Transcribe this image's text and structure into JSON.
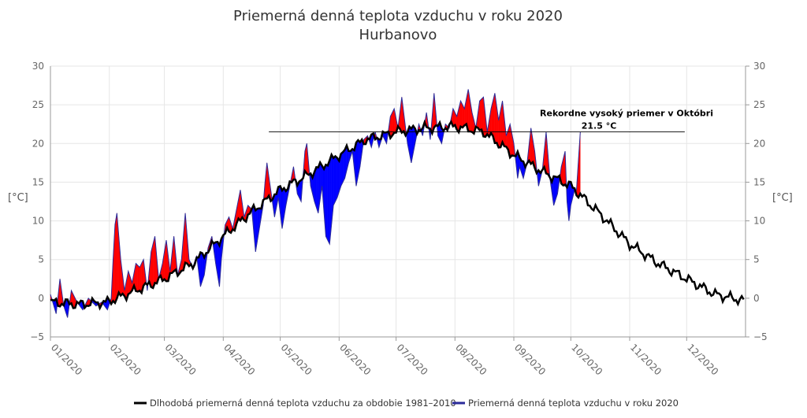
{
  "colors": {
    "above": "#ff0000",
    "below": "#0000ff",
    "series2020": "#2b2b9a",
    "normal": "#000000",
    "grid": "#e6e6e6",
    "axis": "#999999"
  },
  "chart_data": {
    "type": "area",
    "title": "Priemerná denná teplota vzduchu v roku 2020",
    "subtitle": "Hurbanovo",
    "ylabel_left": "[°C]",
    "ylabel_right": "[°C]",
    "ylim": [
      -5,
      30
    ],
    "yticks": [
      30,
      25,
      20,
      15,
      10,
      5,
      0,
      -5
    ],
    "ytick_labels": [
      "30",
      "25",
      "20",
      "15",
      "10",
      "5",
      "0",
      "−5"
    ],
    "xlim": [
      0,
      366
    ],
    "month_starts": [
      0,
      31,
      60,
      91,
      121,
      152,
      182,
      213,
      244,
      274,
      305,
      335
    ],
    "month_labels": [
      "01/2020",
      "02/2020",
      "03/2020",
      "04/2020",
      "05/2020",
      "06/2020",
      "07/2020",
      "08/2020",
      "09/2020",
      "10/2020",
      "11/2020",
      "12/2020"
    ],
    "legend": [
      "Dlhodobá priemerná denná teplota vzduchu za obdobie 1981–2010",
      "Priemerná denná teplota vzduchu v roku 2020"
    ],
    "annotation": {
      "label": "Rekordne vysoký priemer v Októbri",
      "value_label": "21.5 °C",
      "value": 21.5,
      "x_range": [
        115,
        334
      ]
    },
    "normal_keypoints": [
      [
        0,
        -0.5
      ],
      [
        15,
        -0.8
      ],
      [
        30,
        -0.5
      ],
      [
        45,
        1.0
      ],
      [
        60,
        2.5
      ],
      [
        75,
        4.5
      ],
      [
        91,
        8.0
      ],
      [
        105,
        11.0
      ],
      [
        121,
        14.0
      ],
      [
        136,
        16.0
      ],
      [
        152,
        18.5
      ],
      [
        166,
        20.5
      ],
      [
        182,
        21.5
      ],
      [
        197,
        22.0
      ],
      [
        213,
        22.2
      ],
      [
        228,
        21.5
      ],
      [
        244,
        18.5
      ],
      [
        258,
        16.5
      ],
      [
        274,
        14.5
      ],
      [
        289,
        11.0
      ],
      [
        305,
        7.0
      ],
      [
        320,
        4.5
      ],
      [
        335,
        2.5
      ],
      [
        350,
        0.5
      ],
      [
        365,
        -0.3
      ]
    ],
    "series_2020_keypoints": [
      [
        0,
        0.5
      ],
      [
        3,
        -2.0
      ],
      [
        5,
        2.5
      ],
      [
        7,
        -1.0
      ],
      [
        9,
        -2.5
      ],
      [
        11,
        1.0
      ],
      [
        14,
        -0.5
      ],
      [
        17,
        -1.5
      ],
      [
        20,
        0.0
      ],
      [
        24,
        -1.0
      ],
      [
        27,
        -0.5
      ],
      [
        30,
        -1.5
      ],
      [
        32,
        0.0
      ],
      [
        33,
        5.0
      ],
      [
        34,
        9.5
      ],
      [
        35,
        11.0
      ],
      [
        37,
        5.0
      ],
      [
        39,
        1.0
      ],
      [
        41,
        3.5
      ],
      [
        43,
        2.0
      ],
      [
        45,
        4.5
      ],
      [
        47,
        4.0
      ],
      [
        49,
        5.0
      ],
      [
        51,
        1.0
      ],
      [
        53,
        6.0
      ],
      [
        55,
        8.0
      ],
      [
        57,
        2.5
      ],
      [
        59,
        4.5
      ],
      [
        61,
        7.5
      ],
      [
        63,
        3.5
      ],
      [
        65,
        8.0
      ],
      [
        67,
        3.0
      ],
      [
        69,
        5.0
      ],
      [
        71,
        11.0
      ],
      [
        73,
        5.0
      ],
      [
        75,
        4.0
      ],
      [
        77,
        5.5
      ],
      [
        79,
        1.5
      ],
      [
        81,
        3.0
      ],
      [
        83,
        6.5
      ],
      [
        85,
        8.0
      ],
      [
        87,
        4.5
      ],
      [
        89,
        1.5
      ],
      [
        90,
        5.0
      ],
      [
        92,
        9.5
      ],
      [
        94,
        10.5
      ],
      [
        96,
        9.0
      ],
      [
        98,
        11.5
      ],
      [
        100,
        14.0
      ],
      [
        102,
        10.5
      ],
      [
        104,
        12.0
      ],
      [
        106,
        11.5
      ],
      [
        108,
        6.0
      ],
      [
        110,
        9.0
      ],
      [
        112,
        12.0
      ],
      [
        113,
        15.0
      ],
      [
        114,
        17.5
      ],
      [
        116,
        14.0
      ],
      [
        118,
        10.5
      ],
      [
        120,
        13.0
      ],
      [
        122,
        9.0
      ],
      [
        124,
        12.0
      ],
      [
        126,
        14.5
      ],
      [
        128,
        17.0
      ],
      [
        130,
        13.5
      ],
      [
        132,
        12.5
      ],
      [
        134,
        19.0
      ],
      [
        135,
        20.0
      ],
      [
        137,
        14.5
      ],
      [
        139,
        12.5
      ],
      [
        141,
        11.0
      ],
      [
        143,
        14.5
      ],
      [
        145,
        8.0
      ],
      [
        147,
        7.0
      ],
      [
        149,
        12.0
      ],
      [
        151,
        13.0
      ],
      [
        153,
        14.5
      ],
      [
        155,
        15.5
      ],
      [
        157,
        17.5
      ],
      [
        159,
        19.0
      ],
      [
        161,
        14.5
      ],
      [
        163,
        17.0
      ],
      [
        165,
        20.5
      ],
      [
        167,
        21.0
      ],
      [
        169,
        19.5
      ],
      [
        171,
        21.5
      ],
      [
        173,
        19.5
      ],
      [
        175,
        21.0
      ],
      [
        177,
        20.0
      ],
      [
        179,
        23.5
      ],
      [
        181,
        24.5
      ],
      [
        183,
        22.0
      ],
      [
        185,
        26.0
      ],
      [
        187,
        22.0
      ],
      [
        188,
        20.0
      ],
      [
        190,
        17.5
      ],
      [
        192,
        20.0
      ],
      [
        194,
        22.5
      ],
      [
        196,
        21.0
      ],
      [
        198,
        24.0
      ],
      [
        200,
        20.5
      ],
      [
        202,
        26.5
      ],
      [
        204,
        21.0
      ],
      [
        206,
        20.0
      ],
      [
        208,
        22.5
      ],
      [
        210,
        22.0
      ],
      [
        212,
        24.5
      ],
      [
        214,
        23.5
      ],
      [
        216,
        25.5
      ],
      [
        218,
        24.5
      ],
      [
        220,
        27.0
      ],
      [
        222,
        24.0
      ],
      [
        224,
        22.0
      ],
      [
        226,
        25.5
      ],
      [
        228,
        26.0
      ],
      [
        230,
        21.5
      ],
      [
        232,
        24.5
      ],
      [
        234,
        26.5
      ],
      [
        236,
        23.0
      ],
      [
        238,
        25.5
      ],
      [
        240,
        21.0
      ],
      [
        242,
        22.5
      ],
      [
        244,
        20.0
      ],
      [
        246,
        15.5
      ],
      [
        247,
        17.0
      ],
      [
        249,
        15.5
      ],
      [
        251,
        17.5
      ],
      [
        253,
        22.0
      ],
      [
        255,
        19.0
      ],
      [
        257,
        14.5
      ],
      [
        259,
        16.5
      ],
      [
        261,
        21.5
      ],
      [
        263,
        15.5
      ],
      [
        265,
        12.0
      ],
      [
        267,
        13.5
      ],
      [
        269,
        17.0
      ],
      [
        271,
        19.0
      ],
      [
        272,
        12.5
      ],
      [
        273,
        10.0
      ],
      [
        274,
        12.0
      ],
      [
        276,
        14.0
      ],
      [
        277,
        14.0
      ],
      [
        279,
        21.5
      ]
    ]
  }
}
